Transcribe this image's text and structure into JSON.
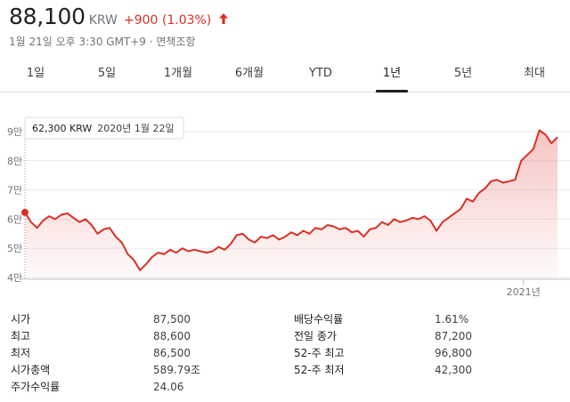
{
  "quote": {
    "price": "88,100",
    "currency": "KRW",
    "change": "+900 (1.03%)",
    "trend": "up",
    "subinfo": "1월 21일 오후 3:30 GMT+9 · 면책조항"
  },
  "tabs": [
    {
      "label": "1일",
      "active": false
    },
    {
      "label": "5일",
      "active": false
    },
    {
      "label": "1개월",
      "active": false
    },
    {
      "label": "6개월",
      "active": false
    },
    {
      "label": "YTD",
      "active": false
    },
    {
      "label": "1년",
      "active": true
    },
    {
      "label": "5년",
      "active": false
    },
    {
      "label": "최대",
      "active": false
    }
  ],
  "chart_data": {
    "type": "area",
    "y_ticks": [
      "9만",
      "8만",
      "7만",
      "6만",
      "5만",
      "4만"
    ],
    "y_tick_values": [
      90000,
      80000,
      70000,
      60000,
      50000,
      40000
    ],
    "ylim": [
      40000,
      90000
    ],
    "x_ticks": [
      "2021년"
    ],
    "x_tick_positions": [
      0.936
    ],
    "tooltip": {
      "value": "62,300 KRW",
      "date": "2020년 1월 22일"
    },
    "line_color": "#d93025",
    "fill_color": "#d93025",
    "series": [
      {
        "values": [
          62300,
          59000,
          57000,
          59500,
          61000,
          60000,
          61500,
          62000,
          60500,
          59000,
          60000,
          58000,
          55000,
          56500,
          57000,
          54000,
          52000,
          48000,
          46000,
          42500,
          44500,
          47000,
          48500,
          48000,
          49500,
          48500,
          50000,
          49000,
          49500,
          49000,
          48500,
          49000,
          50500,
          49500,
          51500,
          54500,
          55000,
          53000,
          52000,
          54000,
          53500,
          54500,
          53000,
          54000,
          55500,
          54500,
          56000,
          55000,
          57000,
          56500,
          58000,
          57500,
          56500,
          57000,
          55500,
          56000,
          54000,
          56500,
          57000,
          59000,
          58000,
          60000,
          59000,
          59500,
          60500,
          60000,
          61000,
          59500,
          56000,
          59000,
          60500,
          62000,
          63500,
          67000,
          66000,
          69000,
          70500,
          73000,
          73500,
          72500,
          73000,
          73500,
          80000,
          82000,
          84000,
          90500,
          89000,
          86000,
          88100
        ]
      }
    ]
  },
  "stats": [
    {
      "label": "시가",
      "value": "87,500"
    },
    {
      "label": "최고",
      "value": "88,600"
    },
    {
      "label": "최저",
      "value": "86,500"
    },
    {
      "label": "시가총액",
      "value": "589.79조"
    },
    {
      "label": "주가수익률",
      "value": "24.06"
    },
    {
      "label": "배당수익률",
      "value": "1.61%"
    },
    {
      "label": "전일 종가",
      "value": "87,200"
    },
    {
      "label": "52-주 최고",
      "value": "96,800"
    },
    {
      "label": "52-주 최저",
      "value": "42,300"
    }
  ]
}
